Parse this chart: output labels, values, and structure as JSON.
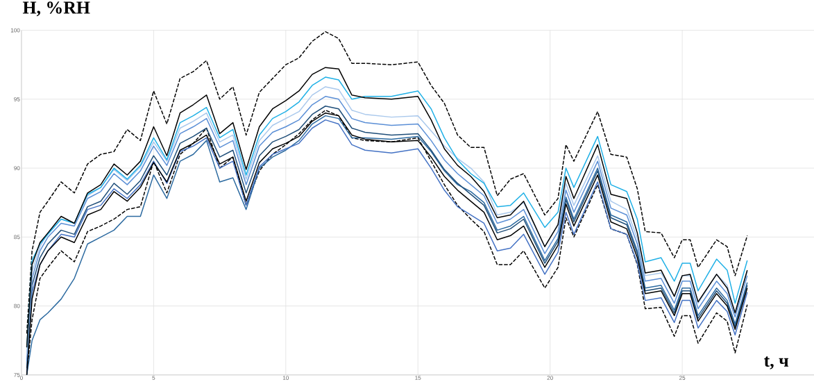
{
  "chart_data": {
    "type": "line",
    "xlabel": "t, ч",
    "ylabel": "H, %RH",
    "xlim": [
      0,
      30
    ],
    "ylim": [
      75,
      100
    ],
    "xticks": [
      0,
      5,
      10,
      15,
      20,
      25
    ],
    "yticks": [
      75,
      80,
      85,
      90,
      95,
      100
    ],
    "grid": true,
    "line_style": "solid",
    "x": [
      0.2,
      0.4,
      0.7,
      1,
      1.5,
      2,
      2.5,
      3,
      3.5,
      4,
      4.5,
      5,
      5.5,
      6,
      6.5,
      7,
      7.5,
      8,
      8.5,
      9,
      9.5,
      10,
      10.5,
      11,
      11.5,
      12,
      12.5,
      13,
      14,
      15,
      15.5,
      16,
      16.5,
      17,
      17.5,
      18,
      18.5,
      19,
      19.8,
      20.3,
      20.6,
      20.9,
      21.8,
      22.3,
      22.9,
      23.3,
      23.6,
      24.2,
      24.7,
      25,
      25.3,
      25.6,
      26.3,
      26.7,
      27,
      27.46
    ],
    "series": [
      {
        "color": "#000000",
        "line_style": "dashed",
        "values": [
          78,
          84,
          86.8,
          87.6,
          89,
          88.2,
          90.3,
          91,
          91.2,
          92.8,
          92,
          95.6,
          93.2,
          96.5,
          97,
          97.8,
          95,
          95.9,
          92.4,
          95.5,
          96.5,
          97.5,
          98,
          99.2,
          99.9,
          99.4,
          97.6,
          97.6,
          97.5,
          97.7,
          96,
          94.7,
          92.4,
          91.5,
          91.5,
          88,
          89.2,
          89.6,
          86.6,
          87.8,
          91.7,
          90.5,
          94.1,
          91,
          90.8,
          88.5,
          85.4,
          85.3,
          83.5,
          84.8,
          84.8,
          82.8,
          84.8,
          84.3,
          82.2,
          85.1
        ]
      },
      {
        "color": "#000000",
        "line_style": "dashed",
        "values": [
          75,
          79,
          82,
          82.8,
          84,
          83.2,
          85.4,
          85.8,
          86.3,
          87,
          87.2,
          90.5,
          88.2,
          91,
          91.8,
          92.9,
          90,
          90.8,
          87.3,
          89.8,
          91,
          91.7,
          92.5,
          93.5,
          94.2,
          93.8,
          92.2,
          92,
          91.9,
          92.2,
          90.5,
          88.8,
          87.3,
          86.3,
          85.4,
          83,
          83,
          84,
          81.3,
          82.8,
          86.4,
          85,
          88.8,
          85.6,
          85.2,
          83,
          79.8,
          79.9,
          77.8,
          79.3,
          79.3,
          77.3,
          79.5,
          78.9,
          76.6,
          80.1
        ]
      },
      {
        "color": "#2c6aa0",
        "values": [
          75,
          77.5,
          79,
          79.5,
          80.5,
          82,
          84.5,
          85,
          85.5,
          86.5,
          86.5,
          89.5,
          87.8,
          90.5,
          91,
          92,
          89,
          89.3,
          87,
          90,
          90.8,
          91.3,
          92,
          93.2,
          93.8,
          93.6,
          92.2,
          92.2,
          92.1,
          92.3,
          91.2,
          89.8,
          88.8,
          88.3,
          87.5,
          85.5,
          85.8,
          86.5,
          83.3,
          84.9,
          87.9,
          86.3,
          90,
          86.6,
          86.1,
          84,
          81.3,
          81.5,
          79.7,
          81.3,
          81.3,
          79.3,
          81.3,
          80.4,
          78.7,
          81.7
        ]
      },
      {
        "color": "#4472c4",
        "values": [
          75.2,
          81,
          83,
          84,
          85.2,
          85,
          87,
          87.3,
          88.5,
          87.8,
          88.8,
          90.5,
          88.9,
          91.2,
          91.6,
          92.2,
          90,
          90.5,
          87.3,
          90.1,
          91,
          91.4,
          91.8,
          92.9,
          93.5,
          93.2,
          91.7,
          91.3,
          91.1,
          91.4,
          90,
          88.4,
          87.2,
          86.6,
          86,
          84,
          84.2,
          85.2,
          82.3,
          83.9,
          86.8,
          85.2,
          89,
          85.6,
          85.2,
          83.1,
          80.4,
          80.6,
          78.8,
          80.4,
          80.4,
          78.4,
          80.4,
          79.6,
          77.9,
          81
        ]
      },
      {
        "color": "#1f4e79",
        "values": [
          75.5,
          81.5,
          83.5,
          84.5,
          85.5,
          85.2,
          87.2,
          87.6,
          88.9,
          88.1,
          89.1,
          90.9,
          89.5,
          91.8,
          92.3,
          92.9,
          90.8,
          91.3,
          88.2,
          90.9,
          91.9,
          92.3,
          92.8,
          93.9,
          94.5,
          94.3,
          92.9,
          92.6,
          92.4,
          92.5,
          91.3,
          89.9,
          88.9,
          88.1,
          87.3,
          85.3,
          85.6,
          86.3,
          83.1,
          84.7,
          87.7,
          86.1,
          89.8,
          86.4,
          85.9,
          83.8,
          81.1,
          81.3,
          79.5,
          81.1,
          81.1,
          79.1,
          81.1,
          80.2,
          78.5,
          81.5
        ]
      },
      {
        "color": "#5b8fd6",
        "values": [
          76,
          82,
          84,
          85,
          86,
          85.8,
          87.8,
          88.3,
          89.6,
          88.8,
          89.8,
          91.6,
          90.2,
          92.5,
          93,
          93.6,
          91.5,
          92,
          88.8,
          91.6,
          92.6,
          93,
          93.5,
          94.6,
          95.2,
          95,
          93.6,
          93.3,
          93.1,
          93.2,
          92,
          90.6,
          89.6,
          88.8,
          88,
          86,
          86.3,
          87,
          83.8,
          85.4,
          88.4,
          86.8,
          90.5,
          87.1,
          86.6,
          84.5,
          81.8,
          82,
          80.2,
          81.8,
          81.8,
          79.8,
          81.8,
          80.9,
          79.2,
          82.2
        ]
      },
      {
        "color": "#a9c8ec",
        "values": [
          76.5,
          82.5,
          84.3,
          85.3,
          86.3,
          86,
          88,
          88.6,
          89.9,
          89.1,
          90.1,
          91.9,
          90.5,
          92.9,
          93.4,
          94,
          91.9,
          92.4,
          89.2,
          92,
          93.1,
          93.6,
          94.1,
          95.3,
          95.9,
          95.7,
          94.2,
          93.9,
          93.7,
          93.8,
          92.7,
          91.6,
          90.7,
          90,
          89,
          86.6,
          86.8,
          87.5,
          84.3,
          85.9,
          88.9,
          87.3,
          90.9,
          87.6,
          87,
          84.9,
          82.2,
          82.4,
          80.7,
          82.2,
          82.2,
          80.2,
          82.3,
          81.5,
          79.5,
          82.5
        ]
      },
      {
        "color": "#1fb0e6",
        "values": [
          77,
          83.3,
          84.5,
          85.2,
          86.3,
          86,
          88.1,
          88.6,
          90,
          89.2,
          90.2,
          92.2,
          90.6,
          93.3,
          93.8,
          94.4,
          92.2,
          92.8,
          89.5,
          92.4,
          93.6,
          94.1,
          94.8,
          96,
          96.6,
          96.4,
          95,
          95.2,
          95.2,
          95.6,
          94.3,
          92.2,
          90.6,
          89.6,
          88.9,
          87.2,
          87.3,
          88.2,
          85.7,
          86.8,
          90,
          88.6,
          92.3,
          88.8,
          88.3,
          86.3,
          83.2,
          83.5,
          81.8,
          83.1,
          83.1,
          81.1,
          83.4,
          82.6,
          80.2,
          83.3
        ]
      },
      {
        "color": "#000000",
        "values": [
          75,
          80.5,
          83,
          84,
          85,
          84.6,
          86.6,
          87,
          88.3,
          87.6,
          88.6,
          90.4,
          89,
          91.3,
          91.8,
          92.4,
          90.3,
          90.8,
          87.6,
          90.4,
          91.4,
          91.8,
          92.3,
          93.4,
          94,
          93.8,
          92.4,
          92.1,
          91.9,
          92,
          90.8,
          89.4,
          88.4,
          87.6,
          86.8,
          84.8,
          85.1,
          85.8,
          82.8,
          84.4,
          87.4,
          85.8,
          89.5,
          86.1,
          85.6,
          83.5,
          80.9,
          81.1,
          79.3,
          80.9,
          80.9,
          78.9,
          80.9,
          80,
          78.3,
          81.3
        ]
      },
      {
        "color": "#000000",
        "values": [
          77,
          83,
          84.6,
          85.3,
          86.5,
          86,
          88.2,
          88.8,
          90.3,
          89.5,
          90.5,
          93,
          90.9,
          94,
          94.6,
          95.3,
          92.5,
          93.3,
          89.9,
          93,
          94.3,
          94.9,
          95.6,
          96.8,
          97.3,
          97.2,
          95.3,
          95.1,
          95,
          95.2,
          93.5,
          91.4,
          90.2,
          89.4,
          88.3,
          86.4,
          86.6,
          87.6,
          84.3,
          85.9,
          89.4,
          87.8,
          91.7,
          88.1,
          87.8,
          85.3,
          82.4,
          82.6,
          80.7,
          82.2,
          82.3,
          80.3,
          82.3,
          81.3,
          79.5,
          82.6
        ]
      }
    ]
  }
}
